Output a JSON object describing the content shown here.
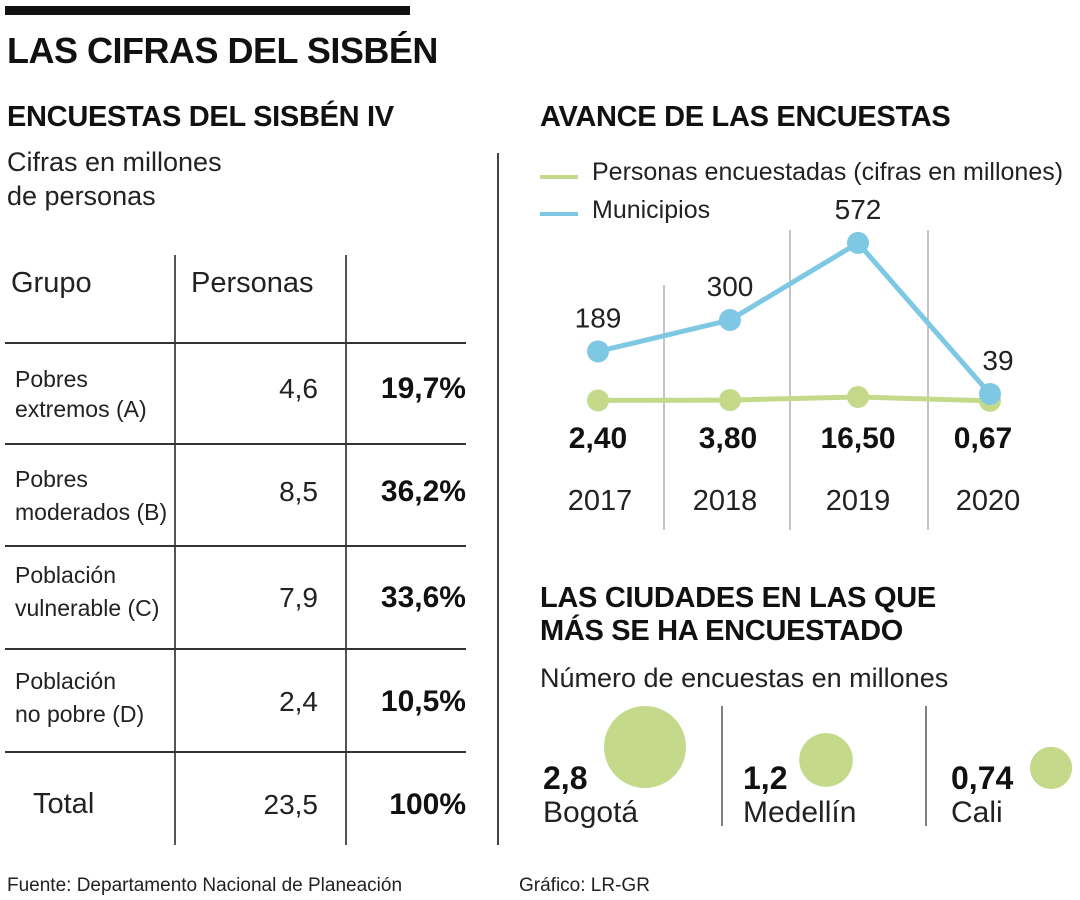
{
  "title": "LAS CIFRAS DEL SISBÉN",
  "table_section": {
    "title": "ENCUESTAS  DEL SISBÉN IV",
    "subtitle_line1": "Cifras en millones",
    "subtitle_line2": "de personas",
    "headers": [
      "Grupo",
      "Personas",
      ""
    ],
    "rows": [
      {
        "label_line1": "Pobres",
        "label_line2": "extremos (A)",
        "personas": "4,6",
        "pct": "19,7%"
      },
      {
        "label_line1": "Pobres",
        "label_line2": "moderados (B)",
        "personas": "8,5",
        "pct": "36,2%"
      },
      {
        "label_line1": "Población",
        "label_line2": "vulnerable (C)",
        "personas": "7,9",
        "pct": "33,6%"
      },
      {
        "label_line1": "Población",
        "label_line2": "no pobre (D)",
        "personas": "2,4",
        "pct": "10,5%"
      }
    ],
    "total": {
      "label": "Total",
      "personas": "23,5",
      "pct": "100%"
    }
  },
  "line_section": {
    "title": "AVANCE DE LAS ENCUESTAS",
    "legend": [
      {
        "label": "Personas encuestadas (cifras en millones)",
        "color": "#c5d98a"
      },
      {
        "label": "Municipios",
        "color": "#7ec8e3"
      }
    ]
  },
  "bubble_section": {
    "title_line1": "LAS CIUDADES EN LAS QUE",
    "title_line2": "MÁS SE HA ENCUESTADO",
    "subtitle": "Número de encuestas en millones",
    "color": "#c5d98a"
  },
  "footer": {
    "source": "Fuente: Departamento Nacional de Planeación",
    "credit": "Gráfico: LR-GR"
  },
  "chart_data": [
    {
      "type": "table",
      "title": "ENCUESTAS DEL SISBÉN IV",
      "subtitle": "Cifras en millones de personas",
      "columns": [
        "Grupo",
        "Personas",
        "%"
      ],
      "rows": [
        [
          "Pobres extremos (A)",
          4.6,
          19.7
        ],
        [
          "Pobres moderados (B)",
          8.5,
          36.2
        ],
        [
          "Población vulnerable (C)",
          7.9,
          33.6
        ],
        [
          "Población no pobre (D)",
          2.4,
          10.5
        ],
        [
          "Total",
          23.5,
          100
        ]
      ]
    },
    {
      "type": "line",
      "title": "AVANCE DE LAS ENCUESTAS",
      "categories": [
        "2017",
        "2018",
        "2019",
        "2020"
      ],
      "series": [
        {
          "name": "Personas encuestadas (cifras en millones)",
          "values": [
            2.4,
            3.8,
            16.5,
            0.67
          ],
          "labels": [
            "2,40",
            "3,80",
            "16,50",
            "0,67"
          ],
          "color": "#c5d98a"
        },
        {
          "name": "Municipios",
          "values": [
            189,
            300,
            572,
            39
          ],
          "labels": [
            "189",
            "300",
            "572",
            "39"
          ],
          "color": "#7ec8e3"
        }
      ],
      "legend": "top-left",
      "grid": "vertical separators"
    },
    {
      "type": "scatter",
      "subtype": "bubble",
      "title": "LAS CIUDADES EN LAS QUE MÁS SE HA ENCUESTADO",
      "subtitle": "Número de encuestas en millones",
      "categories": [
        "Bogotá",
        "Medellín",
        "Cali"
      ],
      "values": [
        2.8,
        1.2,
        0.74
      ],
      "labels": [
        "2,8",
        "1,2",
        "0,74"
      ]
    }
  ]
}
